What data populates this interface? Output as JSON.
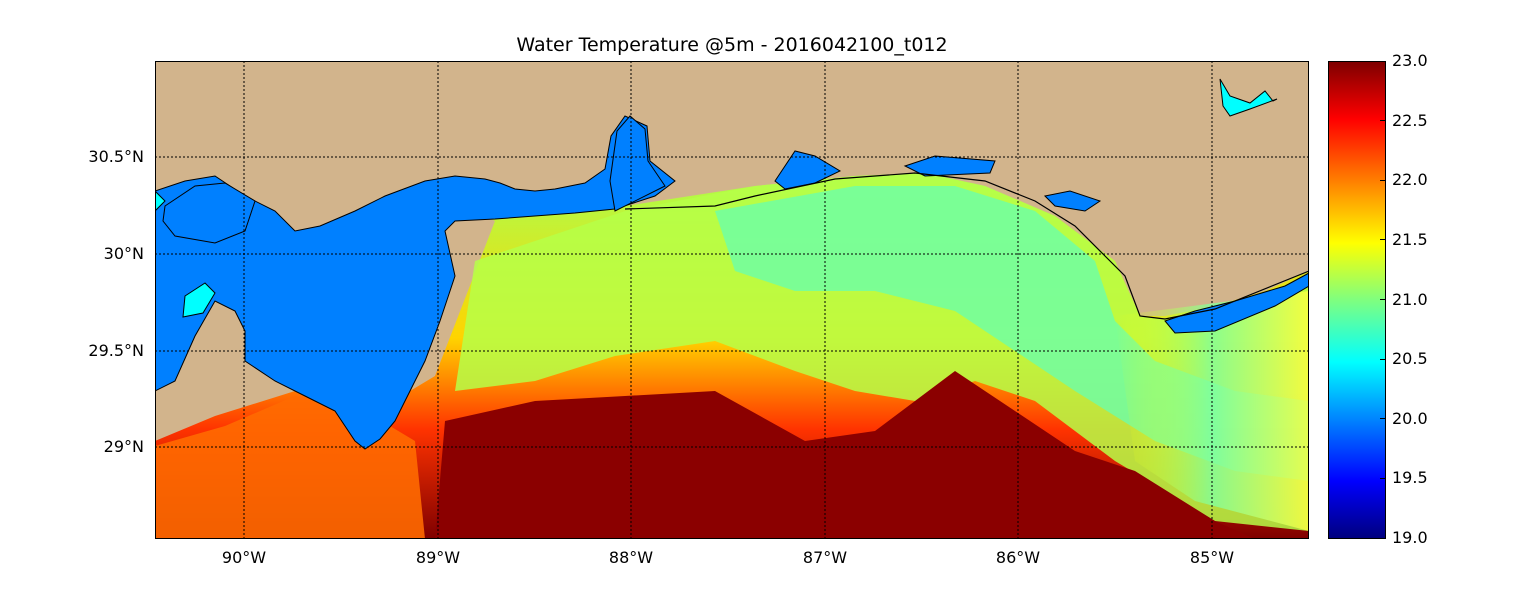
{
  "title": "Water Temperature @5m - 2016042100_t012",
  "map": {
    "lon_range": [
      -90.5,
      -84.5
    ],
    "lat_range": [
      28.55,
      31.0
    ],
    "x_ticks": [
      "90°W",
      "89°W",
      "88°W",
      "87°W",
      "86°W",
      "85°W"
    ],
    "y_ticks": [
      "30.5°N",
      "30°N",
      "29.5°N",
      "29°N"
    ],
    "grid": "dotted",
    "colors": {
      "land": "#D2B48C",
      "inland_water": "#0080FF",
      "lake": "#00FFFF",
      "coastline": "#000000"
    }
  },
  "colorbar": {
    "colormap": "jet",
    "range": [
      19.0,
      23.0
    ],
    "tick_labels": [
      "23.0",
      "22.5",
      "22.0",
      "21.5",
      "21.0",
      "20.5",
      "20.0",
      "19.5",
      "19.0"
    ]
  }
}
